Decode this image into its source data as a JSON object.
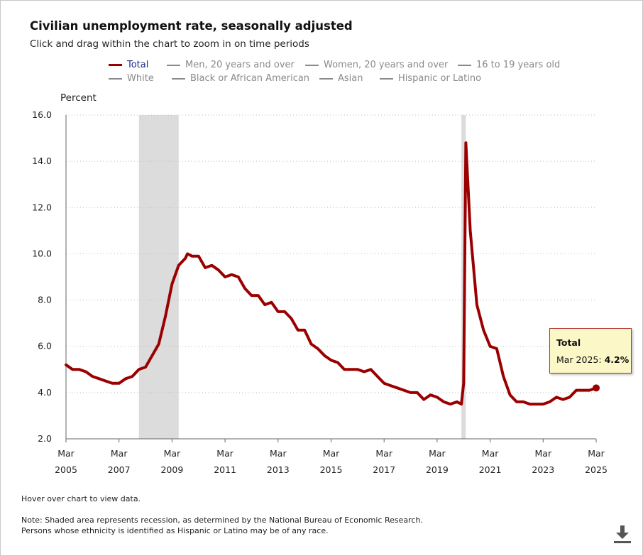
{
  "title": "Civilian unemployment rate, seasonally adjusted",
  "subtitle": "Click and drag within the chart to zoom in on time periods",
  "legend": [
    {
      "label": "Total",
      "active": true
    },
    {
      "label": "Men, 20 years and over",
      "active": false
    },
    {
      "label": "Women, 20 years and over",
      "active": false
    },
    {
      "label": "16 to 19 years old",
      "active": false
    },
    {
      "label": "White",
      "active": false
    },
    {
      "label": "Black or African American",
      "active": false
    },
    {
      "label": "Asian",
      "active": false
    },
    {
      "label": "Hispanic or Latino",
      "active": false
    }
  ],
  "tooltip": {
    "series": "Total",
    "date": "Mar 2025",
    "value": "4.2%"
  },
  "notes": {
    "hover": "Hover over chart to view data.",
    "note1": "Note: Shaded area represents recession, as determined by the National Bureau of Economic Research.",
    "note2": "Persons whose ethnicity is identified as Hispanic or Latino may be of any race."
  },
  "icons": {
    "download": "download-icon"
  },
  "colors": {
    "series": "#9b0000",
    "recession": "#dcdcdc",
    "legend_active_text": "#1f2f8a",
    "tooltip_bg": "#fbf7c7"
  },
  "chart_data": {
    "type": "line",
    "ylabel": "Percent",
    "ylim": [
      2.0,
      16.0
    ],
    "yticks": [
      "2.0",
      "4.0",
      "6.0",
      "8.0",
      "10.0",
      "12.0",
      "14.0",
      "16.0"
    ],
    "xlim": [
      "2005-03",
      "2025-03"
    ],
    "xticks": [
      {
        "month": "Mar",
        "year": "2005",
        "date": "2005-03"
      },
      {
        "month": "Mar",
        "year": "2007",
        "date": "2007-03"
      },
      {
        "month": "Mar",
        "year": "2009",
        "date": "2009-03"
      },
      {
        "month": "Mar",
        "year": "2011",
        "date": "2011-03"
      },
      {
        "month": "Mar",
        "year": "2013",
        "date": "2013-03"
      },
      {
        "month": "Mar",
        "year": "2015",
        "date": "2015-03"
      },
      {
        "month": "Mar",
        "year": "2017",
        "date": "2017-03"
      },
      {
        "month": "Mar",
        "year": "2019",
        "date": "2019-03"
      },
      {
        "month": "Mar",
        "year": "2021",
        "date": "2021-03"
      },
      {
        "month": "Mar",
        "year": "2023",
        "date": "2023-03"
      },
      {
        "month": "Mar",
        "year": "2025",
        "date": "2025-03"
      }
    ],
    "grid": "horizontal dotted",
    "legend_position": "top",
    "recessions": [
      {
        "start": "2007-12",
        "end": "2009-06"
      },
      {
        "start": "2020-02",
        "end": "2020-04"
      }
    ],
    "series": [
      {
        "name": "Total",
        "x": [
          "2005-03",
          "2005-06",
          "2005-09",
          "2005-12",
          "2006-03",
          "2006-06",
          "2006-09",
          "2006-12",
          "2007-03",
          "2007-06",
          "2007-09",
          "2007-12",
          "2008-03",
          "2008-06",
          "2008-09",
          "2008-12",
          "2009-03",
          "2009-06",
          "2009-09",
          "2009-10",
          "2009-12",
          "2010-03",
          "2010-06",
          "2010-09",
          "2010-12",
          "2011-03",
          "2011-06",
          "2011-09",
          "2011-12",
          "2012-03",
          "2012-06",
          "2012-09",
          "2012-12",
          "2013-03",
          "2013-06",
          "2013-09",
          "2013-12",
          "2014-03",
          "2014-06",
          "2014-09",
          "2014-12",
          "2015-03",
          "2015-06",
          "2015-09",
          "2015-12",
          "2016-03",
          "2016-06",
          "2016-09",
          "2016-12",
          "2017-03",
          "2017-06",
          "2017-09",
          "2017-12",
          "2018-03",
          "2018-06",
          "2018-09",
          "2018-12",
          "2019-03",
          "2019-06",
          "2019-09",
          "2019-12",
          "2020-02",
          "2020-03",
          "2020-04",
          "2020-06",
          "2020-09",
          "2020-12",
          "2021-03",
          "2021-06",
          "2021-09",
          "2021-12",
          "2022-03",
          "2022-06",
          "2022-09",
          "2022-12",
          "2023-03",
          "2023-06",
          "2023-09",
          "2023-12",
          "2024-03",
          "2024-06",
          "2024-09",
          "2024-12",
          "2025-03"
        ],
        "values": [
          5.2,
          5.0,
          5.0,
          4.9,
          4.7,
          4.6,
          4.5,
          4.4,
          4.4,
          4.6,
          4.7,
          5.0,
          5.1,
          5.6,
          6.1,
          7.3,
          8.7,
          9.5,
          9.8,
          10.0,
          9.9,
          9.9,
          9.4,
          9.5,
          9.3,
          9.0,
          9.1,
          9.0,
          8.5,
          8.2,
          8.2,
          7.8,
          7.9,
          7.5,
          7.5,
          7.2,
          6.7,
          6.7,
          6.1,
          5.9,
          5.6,
          5.4,
          5.3,
          5.0,
          5.0,
          5.0,
          4.9,
          5.0,
          4.7,
          4.4,
          4.3,
          4.2,
          4.1,
          4.0,
          4.0,
          3.7,
          3.9,
          3.8,
          3.6,
          3.5,
          3.6,
          3.5,
          4.4,
          14.8,
          11.0,
          7.8,
          6.7,
          6.0,
          5.9,
          4.7,
          3.9,
          3.6,
          3.6,
          3.5,
          3.5,
          3.5,
          3.6,
          3.8,
          3.7,
          3.8,
          4.1,
          4.1,
          4.1,
          4.2
        ]
      }
    ]
  }
}
